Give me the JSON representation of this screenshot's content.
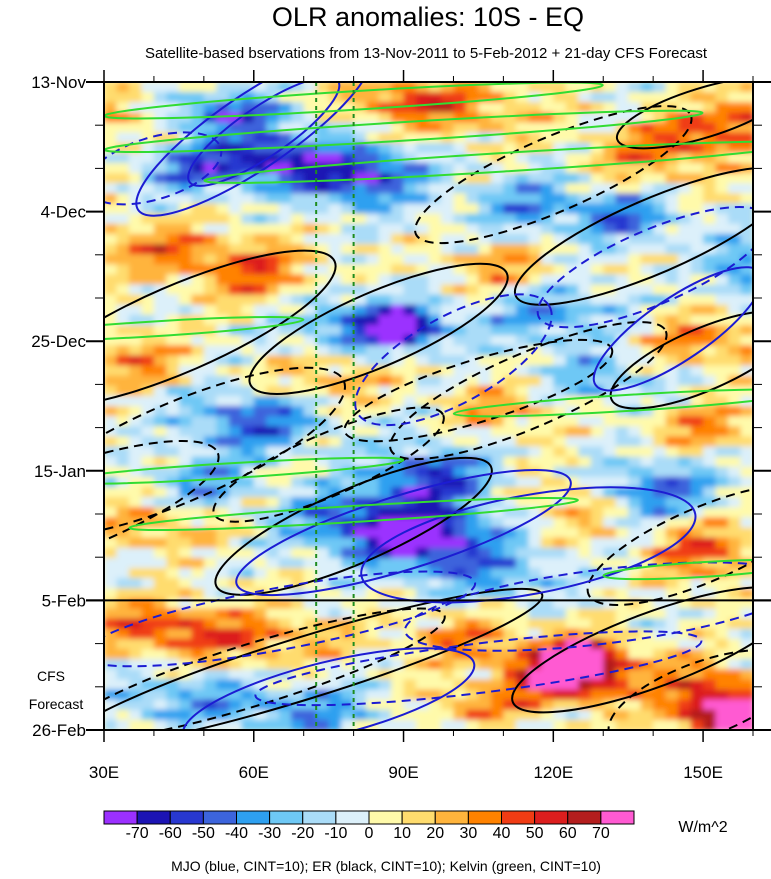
{
  "chart_data": {
    "type": "heatmap",
    "title": "OLR anomalies: 10S - EQ",
    "subtitle": "Satellite-based bservations from 13-Nov-2011 to 5-Feb-2012 + 21-day CFS Forecast",
    "x_axis": {
      "range": [
        30,
        160
      ],
      "ticks": [
        30,
        60,
        90,
        120,
        150
      ],
      "tick_labels": [
        "30E",
        "60E",
        "90E",
        "120E",
        "150E"
      ]
    },
    "y_axis": {
      "ticks_days": [
        0,
        21,
        42,
        63,
        84,
        105
      ],
      "tick_labels": [
        "13-Nov",
        "4-Dec",
        "25-Dec",
        "15-Jan",
        "5-Feb",
        "26-Feb"
      ],
      "observation_end_day": 84,
      "range_days": [
        0,
        105
      ]
    },
    "forecast_label": [
      "CFS",
      "Forecast"
    ],
    "reference_lines_lon": [
      72.5,
      80
    ],
    "colorbar": {
      "levels": [
        -70,
        -60,
        -50,
        -40,
        -30,
        -20,
        -10,
        0,
        10,
        20,
        30,
        40,
        50,
        60,
        70
      ],
      "labels": [
        "-70",
        "-60",
        "-50",
        "-40",
        "-30",
        "-20",
        "-10",
        "0",
        "10",
        "20",
        "30",
        "40",
        "50",
        "60",
        "70"
      ],
      "colors": [
        "#9b30ff",
        "#1c14b4",
        "#2838d0",
        "#3c64dc",
        "#2ea0f0",
        "#6ec8f5",
        "#aadcf8",
        "#dcf0fa",
        "#fffaaa",
        "#ffdc6e",
        "#ffb43c",
        "#ff8200",
        "#f03c14",
        "#dc1e1e",
        "#b41e1e",
        "#ff5ad2"
      ],
      "units": "W/m^2"
    },
    "contour_legend": "MJO (blue, CINT=10); ER (black, CINT=10); Kelvin (green, CINT=10)",
    "series_colors": {
      "MJO": "#1c1cd2",
      "ER": "#000000",
      "Kelvin": "#32dc32"
    },
    "contour_interval": 10
  }
}
